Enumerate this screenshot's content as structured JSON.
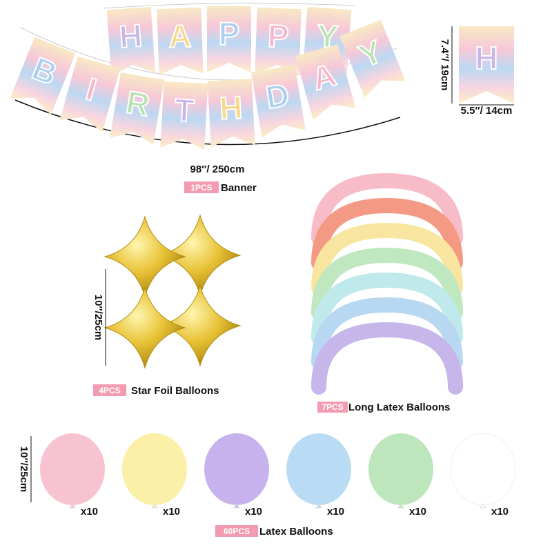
{
  "banner": {
    "top_letters": [
      "H",
      "A",
      "P",
      "P",
      "Y"
    ],
    "bottom_letters": [
      "B",
      "I",
      "R",
      "T",
      "H",
      "D",
      "A",
      "Y"
    ],
    "length": "98″/ 250cm",
    "count": "1PCS",
    "label": "Banner"
  },
  "sample_flag": {
    "letter": "H",
    "height": "7.4″/ 19cm",
    "width": "5.5″/ 14cm"
  },
  "star_foil": {
    "size": "10″/25cm",
    "count": "4PCS",
    "label": "Star Foil Balloons"
  },
  "long_latex": {
    "count": "7PCS",
    "label": "Long Latex Balloons"
  },
  "latex": {
    "size": "10″/25cm",
    "quantities": [
      "x10",
      "x10",
      "x10",
      "x10",
      "x10",
      "x10"
    ],
    "count": "60PCS",
    "label": "Latex Balloons"
  }
}
